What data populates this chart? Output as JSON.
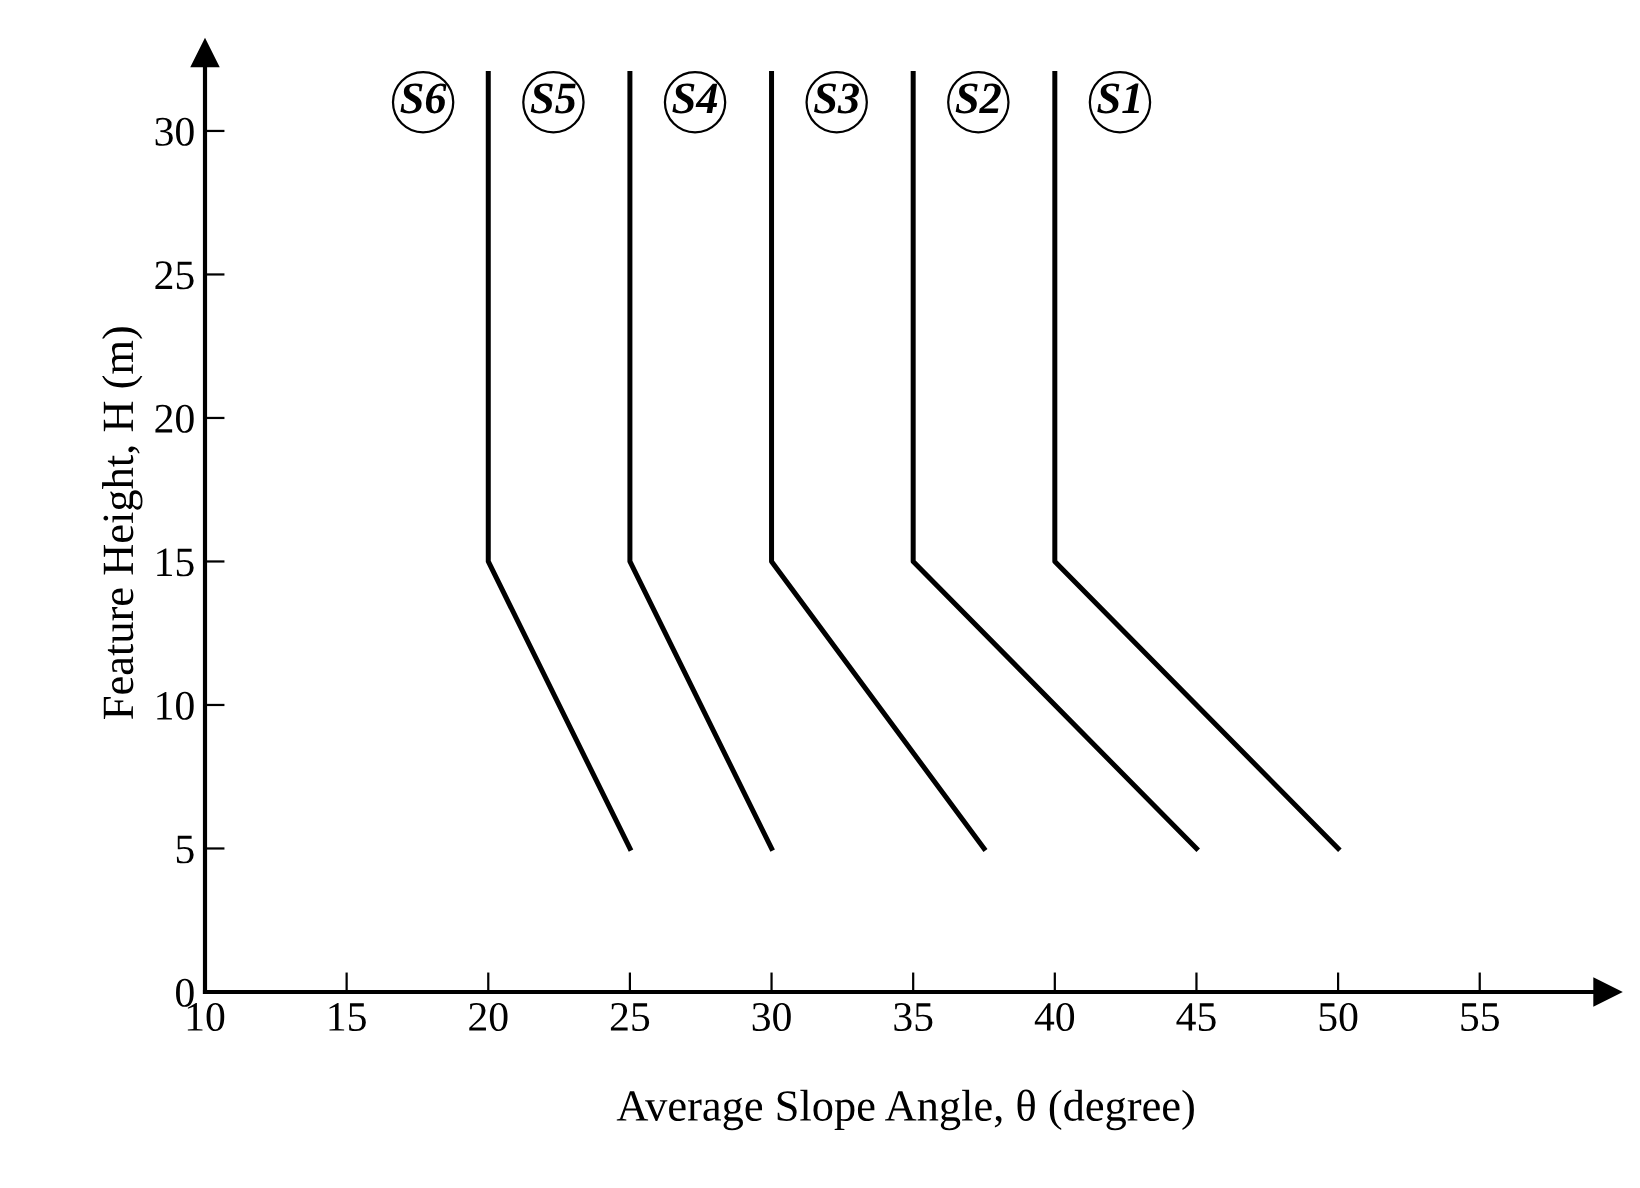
{
  "chart_data": {
    "type": "line",
    "xlabel": "Average Slope Angle, θ (degree)",
    "ylabel": "Feature Height, H (m)",
    "xlim": [
      10,
      59.5
    ],
    "ylim": [
      0,
      32.7
    ],
    "xticks": [
      10,
      15,
      20,
      25,
      30,
      35,
      40,
      45,
      50,
      55
    ],
    "yticks": [
      0,
      5,
      10,
      15,
      20,
      25,
      30
    ],
    "grid": false,
    "legend": false,
    "marker": "none",
    "line_style": "solid",
    "series": [
      {
        "color": "#000000",
        "x": [
          20,
          20,
          25
        ],
        "values": [
          32,
          15,
          5
        ]
      },
      {
        "color": "#000000",
        "x": [
          25,
          25,
          30
        ],
        "values": [
          32,
          15,
          5
        ]
      },
      {
        "color": "#000000",
        "x": [
          30,
          30,
          37.5
        ],
        "values": [
          32,
          15,
          5
        ]
      },
      {
        "color": "#000000",
        "x": [
          35,
          35,
          45
        ],
        "values": [
          32,
          15,
          5
        ]
      },
      {
        "color": "#000000",
        "x": [
          40,
          40,
          50
        ],
        "values": [
          32,
          15,
          5
        ]
      }
    ],
    "annotations": [
      {
        "text": "S6",
        "x": 17.7,
        "y": 31
      },
      {
        "text": "S5",
        "x": 22.3,
        "y": 31
      },
      {
        "text": "S4",
        "x": 27.3,
        "y": 31
      },
      {
        "text": "S3",
        "x": 32.3,
        "y": 31
      },
      {
        "text": "S2",
        "x": 37.3,
        "y": 31
      },
      {
        "text": "S1",
        "x": 42.3,
        "y": 31
      }
    ]
  }
}
